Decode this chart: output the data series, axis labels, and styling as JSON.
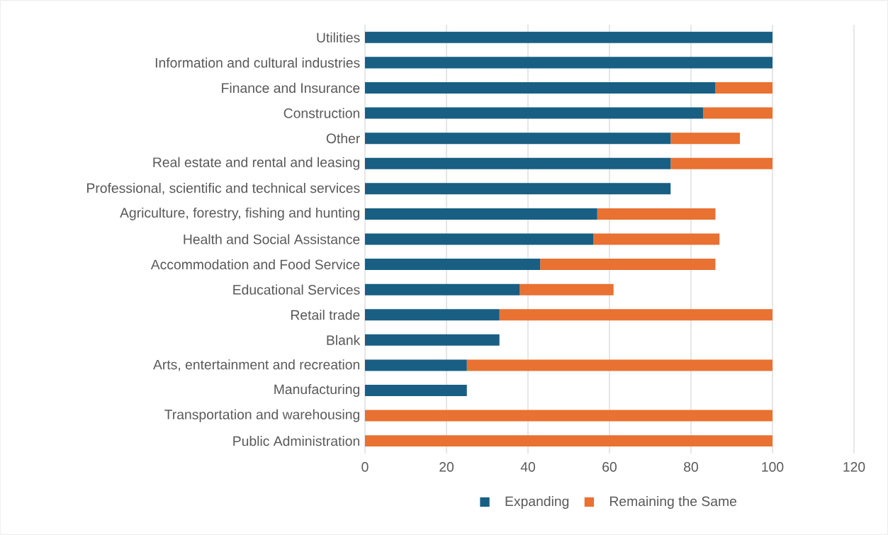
{
  "chart_data": {
    "type": "bar",
    "orientation": "horizontal",
    "stacked": true,
    "categories": [
      "Utilities",
      "Information and cultural industries",
      "Finance and Insurance",
      "Construction",
      "Other",
      "Real estate and rental and leasing",
      "Professional, scientific and technical services",
      "Agriculture, forestry, fishing and hunting",
      "Health and Social Assistance",
      "Accommodation and Food Service",
      "Educational Services",
      "Retail trade",
      "Blank",
      "Arts, entertainment and recreation",
      "Manufacturing",
      "Transportation and warehousing",
      "Public Administration"
    ],
    "series": [
      {
        "name": "Expanding",
        "color": "#185f83",
        "values": [
          100,
          100,
          86,
          83,
          75,
          75,
          75,
          57,
          56,
          43,
          38,
          33,
          33,
          25,
          25,
          0,
          0
        ]
      },
      {
        "name": "Remaining the Same",
        "color": "#e97132",
        "values": [
          0,
          0,
          14,
          17,
          17,
          25,
          0,
          29,
          31,
          43,
          23,
          67,
          0,
          75,
          0,
          100,
          100
        ]
      }
    ],
    "xlim": [
      0,
      120
    ],
    "xticks": [
      0,
      20,
      40,
      60,
      80,
      100,
      120
    ],
    "grid": "x",
    "legend": "bottom"
  }
}
